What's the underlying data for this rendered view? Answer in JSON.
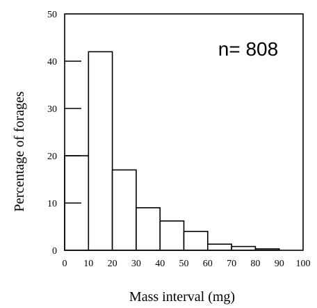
{
  "chart_data": {
    "type": "bar",
    "bins": [
      {
        "x0": 0,
        "x1": 10,
        "value": 20
      },
      {
        "x0": 10,
        "x1": 20,
        "value": 42
      },
      {
        "x0": 20,
        "x1": 30,
        "value": 17
      },
      {
        "x0": 30,
        "x1": 40,
        "value": 9
      },
      {
        "x0": 40,
        "x1": 50,
        "value": 6.2
      },
      {
        "x0": 50,
        "x1": 60,
        "value": 4
      },
      {
        "x0": 60,
        "x1": 70,
        "value": 1.3
      },
      {
        "x0": 70,
        "x1": 80,
        "value": 0.8
      },
      {
        "x0": 80,
        "x1": 90,
        "value": 0.3
      }
    ],
    "xlim": [
      0,
      100
    ],
    "ylim": [
      0,
      50
    ],
    "x_ticks": [
      "0",
      "10",
      "20",
      "30",
      "40",
      "50",
      "60",
      "70",
      "80",
      "90",
      "100"
    ],
    "y_ticks": [
      "0",
      "10",
      "20",
      "30",
      "40",
      "50"
    ],
    "xlabel": "Mass interval (mg)",
    "ylabel": "Percentage of forages",
    "annotation": "n= 808",
    "grid": false
  }
}
